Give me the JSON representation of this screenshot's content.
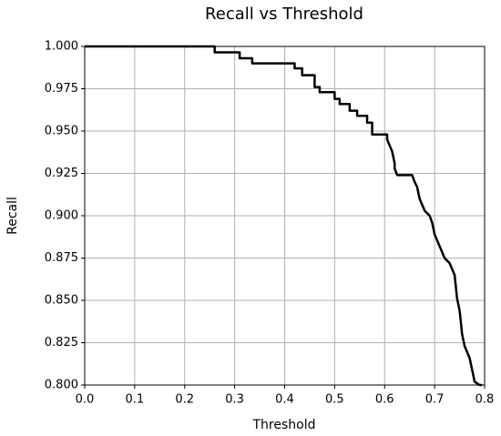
{
  "chart_data": {
    "type": "line",
    "title": "Recall vs Threshold",
    "x_label": "Threshold",
    "y_label": "Recall",
    "x": [
      0,
      0.26,
      0.26,
      0.31,
      0.31,
      0.335,
      0.335,
      0.42,
      0.42,
      0.435,
      0.435,
      0.46,
      0.46,
      0.47,
      0.47,
      0.5,
      0.5,
      0.51,
      0.51,
      0.53,
      0.53,
      0.545,
      0.545,
      0.565,
      0.565,
      0.575,
      0.575,
      0.605,
      0.605,
      0.615,
      0.62,
      0.62,
      0.625,
      0.625,
      0.655,
      0.66,
      0.665,
      0.67,
      0.68,
      0.69,
      0.695,
      0.7,
      0.71,
      0.72,
      0.73,
      0.74,
      0.745,
      0.75,
      0.755,
      0.76,
      0.77,
      0.775,
      0.78,
      0.79,
      0.795
    ],
    "series": [
      {
        "name": "Recall",
        "color": "#000000",
        "values": [
          1,
          1,
          0.9965,
          0.9965,
          0.993,
          0.993,
          0.99,
          0.99,
          0.987,
          0.987,
          0.983,
          0.983,
          0.976,
          0.976,
          0.973,
          0.973,
          0.969,
          0.969,
          0.966,
          0.966,
          0.962,
          0.962,
          0.959,
          0.959,
          0.955,
          0.955,
          0.948,
          0.948,
          0.945,
          0.938,
          0.931,
          0.928,
          0.924,
          0.924,
          0.924,
          0.92,
          0.917,
          0.91,
          0.903,
          0.9,
          0.896,
          0.889,
          0.882,
          0.875,
          0.872,
          0.865,
          0.851,
          0.844,
          0.83,
          0.823,
          0.816,
          0.809,
          0.802,
          0.8,
          0.8
        ]
      }
    ],
    "xlim": [
      0,
      0.8
    ],
    "ylim": [
      0.8,
      1.0
    ],
    "xticks": [
      {
        "value": 0,
        "label": "0.0"
      },
      0.1,
      0.2,
      0.3,
      0.4,
      0.5,
      0.6,
      0.7,
      0.8
    ],
    "yticks": [
      {
        "value": 0.8,
        "label": "0.800"
      },
      0.825,
      {
        "value": 0.85,
        "label": "0.850"
      },
      0.875,
      {
        "value": 0.9,
        "label": "0.900"
      },
      0.925,
      {
        "value": 0.95,
        "label": "0.950"
      },
      {
        "value": 0.975,
        "label": "0.975"
      },
      {
        "value": 1.0,
        "label": "1.000"
      }
    ],
    "grid": true
  }
}
